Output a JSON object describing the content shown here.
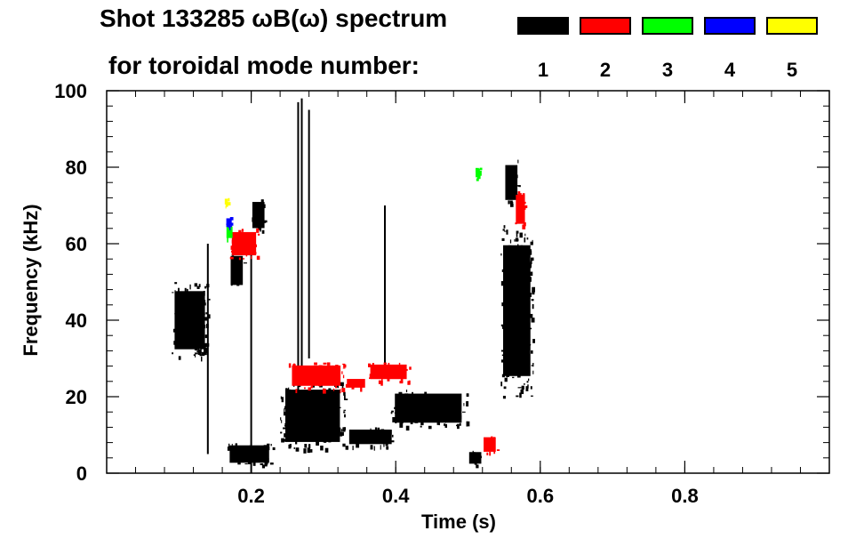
{
  "header": {
    "title_line1": "Shot 133285 ωB(ω) spectrum",
    "title_line2": "for toroidal mode number:"
  },
  "legend": [
    {
      "label": "1",
      "color": "#000000"
    },
    {
      "label": "2",
      "color": "#ff0000"
    },
    {
      "label": "3",
      "color": "#00ff00"
    },
    {
      "label": "4",
      "color": "#0000ff"
    },
    {
      "label": "5",
      "color": "#ffff00"
    }
  ],
  "chart_data": {
    "type": "heatmap",
    "title": "Shot 133285 ωB(ω) spectrum",
    "xlabel": "Time (s)",
    "ylabel": "Frequency (kHz)",
    "xlim": [
      0.0,
      1.0
    ],
    "ylim": [
      0,
      100
    ],
    "xticks": [
      "0.2",
      "0.4",
      "0.6",
      "0.8"
    ],
    "xtick_values": [
      0.2,
      0.4,
      0.6,
      0.8
    ],
    "yticks": [
      "0",
      "20",
      "40",
      "60",
      "80",
      "100"
    ],
    "ytick_values": [
      0,
      20,
      40,
      60,
      80,
      100
    ],
    "series": [
      {
        "mode": "1",
        "color": "#000000",
        "regions": [
          {
            "t": [
              0.09,
              0.14
            ],
            "f": [
              30,
              50
            ]
          },
          {
            "t": [
              0.165,
              0.23
            ],
            "f": [
              2,
              8
            ]
          },
          {
            "t": [
              0.17,
              0.19
            ],
            "f": [
              48,
              58
            ]
          },
          {
            "t": [
              0.2,
              0.22
            ],
            "f": [
              63,
              72
            ]
          },
          {
            "t": [
              0.24,
              0.33
            ],
            "f": [
              6,
              24
            ]
          },
          {
            "t": [
              0.33,
              0.4
            ],
            "f": [
              7,
              12
            ]
          },
          {
            "t": [
              0.39,
              0.5
            ],
            "f": [
              12,
              22
            ]
          },
          {
            "t": [
              0.545,
              0.59
            ],
            "f": [
              20,
              65
            ]
          },
          {
            "t": [
              0.55,
              0.57
            ],
            "f": [
              70,
              82
            ]
          },
          {
            "t": [
              0.5,
              0.52
            ],
            "f": [
              2,
              6
            ]
          }
        ],
        "lines": [
          {
            "t": 0.265,
            "f": [
              20,
              97
            ]
          },
          {
            "t": 0.27,
            "f": [
              25,
              98
            ]
          },
          {
            "t": 0.28,
            "f": [
              30,
              95
            ]
          },
          {
            "t": 0.385,
            "f": [
              25,
              70
            ]
          },
          {
            "t": 0.2,
            "f": [
              0,
              60
            ]
          },
          {
            "t": 0.14,
            "f": [
              5,
              60
            ]
          }
        ]
      },
      {
        "mode": "2",
        "color": "#ff0000",
        "regions": [
          {
            "t": [
              0.17,
              0.21
            ],
            "f": [
              56,
              64
            ]
          },
          {
            "t": [
              0.25,
              0.33
            ],
            "f": [
              22,
              29
            ]
          },
          {
            "t": [
              0.33,
              0.36
            ],
            "f": [
              22,
              25
            ]
          },
          {
            "t": [
              0.36,
              0.42
            ],
            "f": [
              24,
              29
            ]
          },
          {
            "t": [
              0.565,
              0.58
            ],
            "f": [
              64,
              74
            ]
          },
          {
            "t": [
              0.52,
              0.54
            ],
            "f": [
              5,
              10
            ]
          }
        ]
      },
      {
        "mode": "3",
        "color": "#00ff00",
        "regions": [
          {
            "t": [
              0.165,
              0.175
            ],
            "f": [
              61,
              65
            ]
          },
          {
            "t": [
              0.51,
              0.517
            ],
            "f": [
              77,
              80
            ]
          }
        ]
      },
      {
        "mode": "4",
        "color": "#0000ff",
        "regions": [
          {
            "t": [
              0.165,
              0.172
            ],
            "f": [
              64,
              67
            ]
          }
        ]
      },
      {
        "mode": "5",
        "color": "#ffff00",
        "regions": [
          {
            "t": [
              0.163,
              0.168
            ],
            "f": [
              70,
              72
            ]
          }
        ]
      }
    ],
    "grid": false
  }
}
